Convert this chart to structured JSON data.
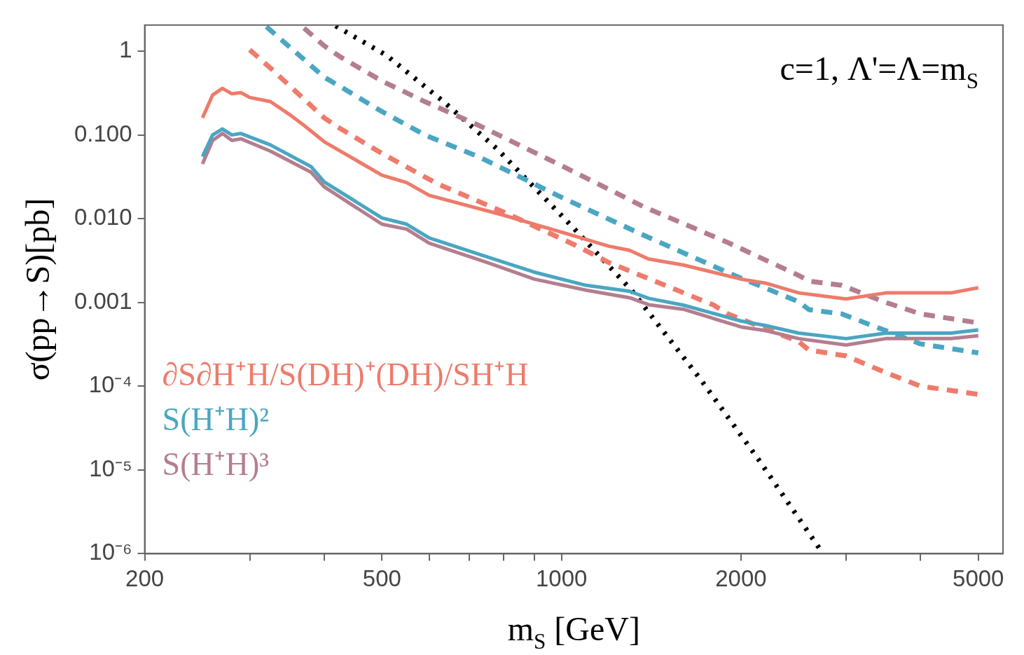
{
  "chart_data": {
    "type": "line",
    "xlabel": "m$_{S}$ [GeV]",
    "ylabel": "σ(pp→S)[pb]",
    "annotations": [
      "c=1, Λ'=Λ=m$_{S}$"
    ],
    "log": "xy",
    "grid": false,
    "legend": "bottom left",
    "marker": "none",
    "xlim": [
      200,
      5500
    ],
    "xticks": [
      200,
      {
        "value": 300,
        "label": null
      },
      {
        "value": 400,
        "label": null
      },
      500,
      {
        "value": 600,
        "label": null
      },
      {
        "value": 700,
        "label": null
      },
      {
        "value": 800,
        "label": null
      },
      {
        "value": 900,
        "label": null
      },
      1000,
      2000,
      {
        "value": 3000,
        "label": null
      },
      {
        "value": 4000,
        "label": null
      },
      5000
    ],
    "ylim": [
      1e-06,
      2.05
    ],
    "yticks": [
      {
        "value": 1e-06,
        "label": "10⁻⁶"
      },
      {
        "value": 1e-05,
        "label": "10⁻⁵"
      },
      {
        "value": 0.0001,
        "label": "10⁻⁴"
      },
      {
        "value": 0.001,
        "label": "0.001"
      },
      {
        "value": 0.01,
        "label": "0.010"
      },
      {
        "value": 0.1,
        "label": "0.100"
      },
      1
    ],
    "series": [
      {
        "name": "∂S∂H⁺H/S(DH)⁺(DH)/SH⁺H",
        "color": "#ee7b6b",
        "line_style": "solid",
        "x": [
          250,
          260,
          270,
          280,
          290,
          300,
          325,
          350,
          370,
          400,
          500,
          550,
          600,
          800,
          1000,
          1200,
          1300,
          1400,
          1600,
          2000,
          2200,
          2500,
          3000,
          3500,
          4000,
          4500,
          5000
        ],
        "values": [
          0.16,
          0.3,
          0.36,
          0.31,
          0.32,
          0.28,
          0.25,
          0.175,
          0.13,
          0.083,
          0.033,
          0.027,
          0.019,
          0.011,
          0.0069,
          0.0047,
          0.0042,
          0.0033,
          0.0028,
          0.0019,
          0.0017,
          0.0013,
          0.0011,
          0.0013,
          0.0013,
          0.0013,
          0.0015
        ]
      },
      {
        "name": "S(H⁺H)²",
        "color": "#4aa6c2",
        "line_style": "solid",
        "x": [
          250,
          260,
          270,
          280,
          290,
          325,
          380,
          400,
          500,
          550,
          600,
          750,
          900,
          1100,
          1300,
          1400,
          1600,
          2000,
          2200,
          2500,
          3000,
          3500,
          4500,
          5000
        ],
        "values": [
          0.055,
          0.1,
          0.118,
          0.1,
          0.104,
          0.076,
          0.042,
          0.0275,
          0.0102,
          0.0086,
          0.0059,
          0.0035,
          0.0023,
          0.0016,
          0.00136,
          0.00112,
          0.00093,
          0.0006,
          0.00053,
          0.00043,
          0.00037,
          0.00043,
          0.00043,
          0.00047
        ]
      },
      {
        "name": "S(H⁺H)³",
        "color": "#b47e8e",
        "line_style": "solid",
        "x": [
          250,
          260,
          270,
          280,
          290,
          325,
          380,
          400,
          500,
          550,
          600,
          750,
          900,
          1100,
          1300,
          1400,
          1600,
          2000,
          2200,
          2500,
          3000,
          3500,
          4500,
          5000
        ],
        "values": [
          0.045,
          0.086,
          0.104,
          0.086,
          0.09,
          0.064,
          0.036,
          0.024,
          0.0086,
          0.0075,
          0.0051,
          0.003,
          0.0019,
          0.0014,
          0.00114,
          0.00094,
          0.00083,
          0.00051,
          0.00046,
          0.00037,
          0.00031,
          0.00037,
          0.00037,
          0.0004
        ]
      },
      {
        "color": "#ee7b6b",
        "line_style": "dashed",
        "x": [
          300,
          330,
          400,
          425,
          500,
          620,
          800,
          1050,
          1200,
          1800,
          1900,
          2500,
          2600,
          3000,
          3500,
          4000,
          5000
        ],
        "values": [
          1.04,
          0.57,
          0.16,
          0.12,
          0.06,
          0.026,
          0.012,
          0.0049,
          0.003,
          0.00093,
          0.00073,
          0.00034,
          0.00027,
          0.00023,
          0.000145,
          0.0001,
          8e-05
        ]
      },
      {
        "color": "#4aa6c2",
        "line_style": "dashed",
        "x": [
          320,
          400,
          425,
          500,
          590,
          730,
          1000,
          1370,
          1950,
          2500,
          2600,
          2950,
          3500,
          4000,
          5000
        ],
        "values": [
          1.96,
          0.49,
          0.38,
          0.19,
          0.1,
          0.054,
          0.018,
          0.0064,
          0.0021,
          0.00102,
          0.00082,
          0.00073,
          0.00046,
          0.00032,
          0.00025
        ]
      },
      {
        "color": "#b47e8e",
        "line_style": "dashed",
        "x": [
          370,
          400,
          425,
          500,
          590,
          730,
          1000,
          1370,
          1900,
          2500,
          2600,
          2950,
          3500,
          4000,
          5000
        ],
        "values": [
          1.89,
          1.16,
          0.86,
          0.44,
          0.25,
          0.128,
          0.043,
          0.014,
          0.0052,
          0.0021,
          0.0018,
          0.0016,
          0.001,
          0.00073,
          0.00057
        ]
      },
      {
        "color": "#000000",
        "line_style": "dotted",
        "x": [
          418,
          509,
          634,
          780,
          1043,
          1310,
          1712,
          2145,
          2720
        ],
        "values": [
          2.0,
          0.89,
          0.25,
          0.068,
          0.008,
          0.0014,
          0.00012,
          1.3e-05,
          1.1e-06
        ]
      }
    ]
  }
}
